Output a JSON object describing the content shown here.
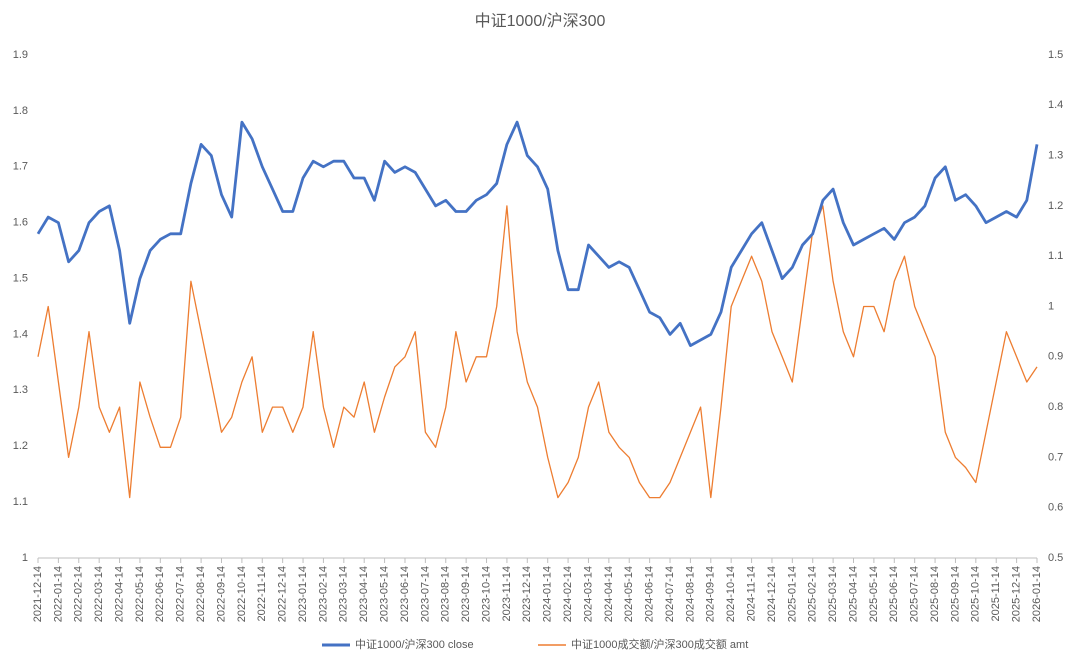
{
  "chart_data": {
    "type": "line",
    "title": "中证1000/沪深300",
    "categories": [
      "2021-12-14",
      null,
      "2022-01-14",
      null,
      "2022-02-14",
      null,
      "2022-03-14",
      null,
      "2022-04-14",
      null,
      "2022-05-14",
      null,
      "2022-06-14",
      null,
      "2022-07-14",
      null,
      "2022-08-14",
      null,
      "2022-09-14",
      null,
      "2022-10-14",
      null,
      "2022-11-14",
      null,
      "2022-12-14",
      null,
      "2023-01-14",
      null,
      "2023-02-14",
      null,
      "2023-03-14",
      null,
      "2023-04-14",
      null,
      "2023-05-14",
      null,
      "2023-06-14",
      null,
      "2023-07-14",
      null,
      "2023-08-14",
      null,
      "2023-09-14",
      null,
      "2023-10-14",
      null,
      "2023-11-14",
      null,
      "2023-12-14",
      null,
      "2024-01-14",
      null,
      "2024-02-14",
      null,
      "2024-03-14",
      null,
      "2024-04-14",
      null,
      "2024-05-14",
      null,
      "2024-06-14",
      null,
      "2024-07-14",
      null,
      "2024-08-14",
      null,
      "2024-09-14",
      null,
      "2024-10-14",
      null,
      "2024-11-14",
      null,
      "2024-12-14",
      null,
      "2025-01-14",
      null,
      "2025-02-14",
      null,
      "2025-03-14",
      null,
      "2025-04-14",
      null,
      "2025-05-14",
      null,
      "2025-06-14",
      null,
      "2025-07-14",
      null,
      "2025-08-14",
      null,
      "2025-09-14",
      null,
      "2025-10-14",
      null,
      "2025-11-14",
      null,
      "2025-12-14",
      null,
      "2026-01-14"
    ],
    "series": [
      {
        "name": "中证1000/沪深300 close",
        "color": "#4472c4",
        "axis": "y",
        "values": [
          1.58,
          1.61,
          1.6,
          1.53,
          1.55,
          1.6,
          1.62,
          1.63,
          1.55,
          1.42,
          1.5,
          1.55,
          1.57,
          1.58,
          1.58,
          1.67,
          1.74,
          1.72,
          1.65,
          1.61,
          1.78,
          1.75,
          1.7,
          1.66,
          1.62,
          1.62,
          1.68,
          1.71,
          1.7,
          1.71,
          1.71,
          1.68,
          1.68,
          1.64,
          1.71,
          1.69,
          1.7,
          1.69,
          1.66,
          1.63,
          1.64,
          1.62,
          1.62,
          1.64,
          1.65,
          1.67,
          1.74,
          1.78,
          1.72,
          1.7,
          1.66,
          1.55,
          1.48,
          1.48,
          1.56,
          1.54,
          1.52,
          1.53,
          1.52,
          1.48,
          1.44,
          1.43,
          1.4,
          1.42,
          1.38,
          1.39,
          1.4,
          1.44,
          1.52,
          1.55,
          1.58,
          1.6,
          1.55,
          1.5,
          1.52,
          1.56,
          1.58,
          1.64,
          1.66,
          1.6,
          1.56,
          1.57,
          1.58,
          1.59,
          1.57,
          1.6,
          1.61,
          1.63,
          1.68,
          1.7,
          1.64,
          1.65,
          1.63,
          1.6,
          1.61,
          1.62,
          1.61,
          1.64,
          1.74
        ]
      },
      {
        "name": "中证1000成交额/沪深300成交额 amt",
        "color": "#ed7d31",
        "axis": "y2",
        "values": [
          0.9,
          1.0,
          0.85,
          0.7,
          0.8,
          0.95,
          0.8,
          0.75,
          0.8,
          0.62,
          0.85,
          0.78,
          0.72,
          0.72,
          0.78,
          1.05,
          0.95,
          0.85,
          0.75,
          0.78,
          0.85,
          0.9,
          0.75,
          0.8,
          0.8,
          0.75,
          0.8,
          0.95,
          0.8,
          0.72,
          0.8,
          0.78,
          0.85,
          0.75,
          0.82,
          0.88,
          0.9,
          0.95,
          0.75,
          0.72,
          0.8,
          0.95,
          0.85,
          0.9,
          0.9,
          1.0,
          1.2,
          0.95,
          0.85,
          0.8,
          0.7,
          0.62,
          0.65,
          0.7,
          0.8,
          0.85,
          0.75,
          0.72,
          0.7,
          0.65,
          0.62,
          0.62,
          0.65,
          0.7,
          0.75,
          0.8,
          0.62,
          0.8,
          1.0,
          1.05,
          1.1,
          1.05,
          0.95,
          0.9,
          0.85,
          1.0,
          1.15,
          1.2,
          1.05,
          0.95,
          0.9,
          1.0,
          1.0,
          0.95,
          1.05,
          1.1,
          1.0,
          0.95,
          0.9,
          0.75,
          0.7,
          0.68,
          0.65,
          0.75,
          0.85,
          0.95,
          0.9,
          0.85,
          0.88
        ]
      }
    ],
    "ylim": [
      1,
      1.9
    ],
    "yticks": [
      1,
      1.1,
      1.2,
      1.3,
      1.4,
      1.5,
      1.6,
      1.7,
      1.8,
      1.9
    ],
    "y2lim": [
      0.5,
      1.5
    ],
    "y2ticks": [
      0.5,
      0.6,
      0.7,
      0.8,
      0.9,
      1,
      1.1,
      1.2,
      1.3,
      1.4,
      1.5
    ],
    "grid": false,
    "legend": "bottom"
  }
}
